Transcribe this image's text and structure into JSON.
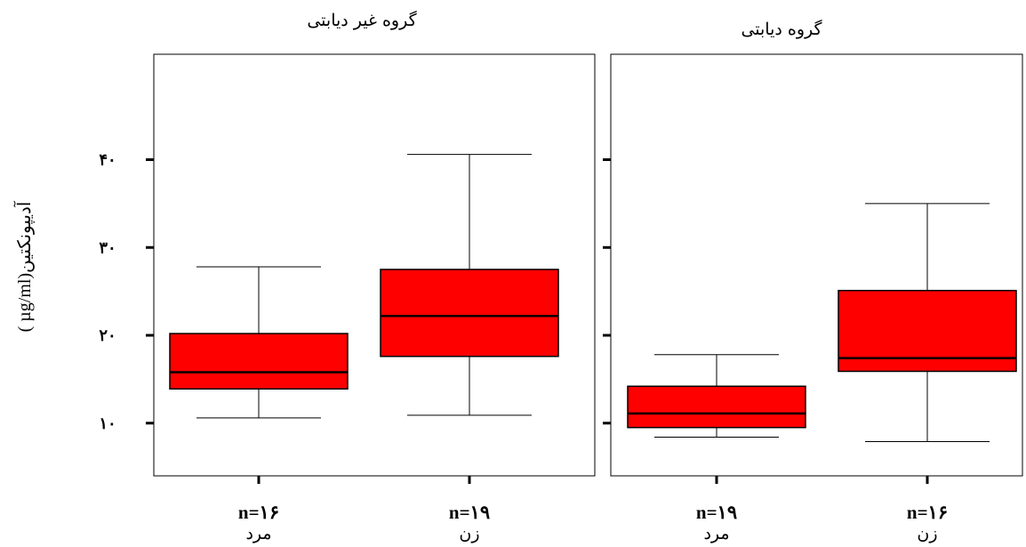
{
  "chart_data": [
    {
      "type": "box",
      "title": "گروه غیر دیابتی",
      "ylabel": "آدیپونکتین(µg/ml )",
      "ylim": [
        4,
        52
      ],
      "yticks": [
        10,
        20,
        30,
        40
      ],
      "ytick_labels": [
        "۱۰",
        "۲۰",
        "۳۰",
        "۴۰"
      ],
      "groups": [
        {
          "n_label": "n=۱۶",
          "group_label": "مرد",
          "whisker_low": 10.6,
          "q1": 13.9,
          "median": 15.8,
          "q3": 20.2,
          "whisker_high": 27.8,
          "color": "#ff0000"
        },
        {
          "n_label": "n=۱۹",
          "group_label": "زن",
          "whisker_low": 10.9,
          "q1": 17.6,
          "median": 22.2,
          "q3": 27.5,
          "whisker_high": 40.6,
          "color": "#ff0000"
        }
      ]
    },
    {
      "type": "box",
      "title": "گروه دیابتی",
      "ylim": [
        4,
        52
      ],
      "yticks": [
        10,
        20,
        30,
        40
      ],
      "groups": [
        {
          "n_label": "n=۱۹",
          "group_label": "مرد",
          "whisker_low": 8.4,
          "q1": 9.5,
          "median": 11.1,
          "q3": 14.2,
          "whisker_high": 17.8,
          "color": "#ff0000"
        },
        {
          "n_label": "n=۱۶",
          "group_label": "زن",
          "whisker_low": 7.9,
          "q1": 15.9,
          "median": 17.4,
          "q3": 25.1,
          "whisker_high": 35.0,
          "color": "#ff0000"
        }
      ]
    }
  ]
}
